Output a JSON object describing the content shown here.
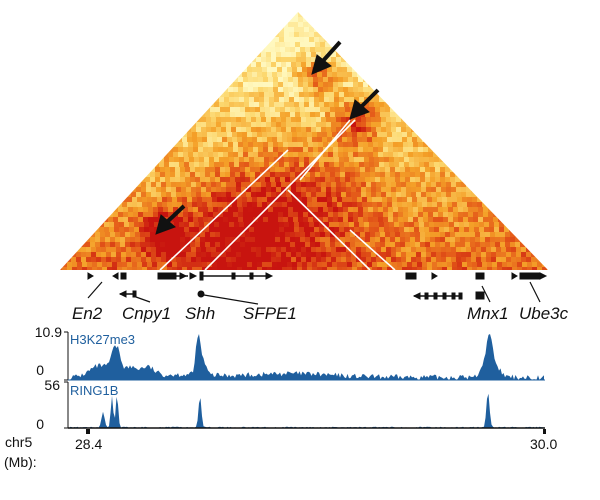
{
  "heatmap": {
    "arrows": [
      {
        "label": "arrow-upper"
      },
      {
        "label": "arrow-middle"
      },
      {
        "label": "arrow-lower"
      }
    ]
  },
  "genes": {
    "labels": [
      "En2",
      "Cnpy1",
      "Shh",
      "SFPE1",
      "Mnx1",
      "Ube3c"
    ]
  },
  "tracks": {
    "h3k27me3": {
      "name": "H3K27me3",
      "ymax": "10.9",
      "ymin": "0",
      "color": "#1f5f9e"
    },
    "ring1b": {
      "name": "RING1B",
      "ymax": "56",
      "ymin": "0",
      "color": "#1f5f9e"
    }
  },
  "axis": {
    "chrom": "chr5",
    "unit": "(Mb):",
    "start": "28.4",
    "end": "30.0"
  },
  "colors": {
    "heat_low": "#fff6b0",
    "heat_mid": "#f4a020",
    "heat_high": "#cc1010",
    "track_fill": "#1f5f9e",
    "domain_lines": "#ffffff",
    "text": "#111111"
  }
}
